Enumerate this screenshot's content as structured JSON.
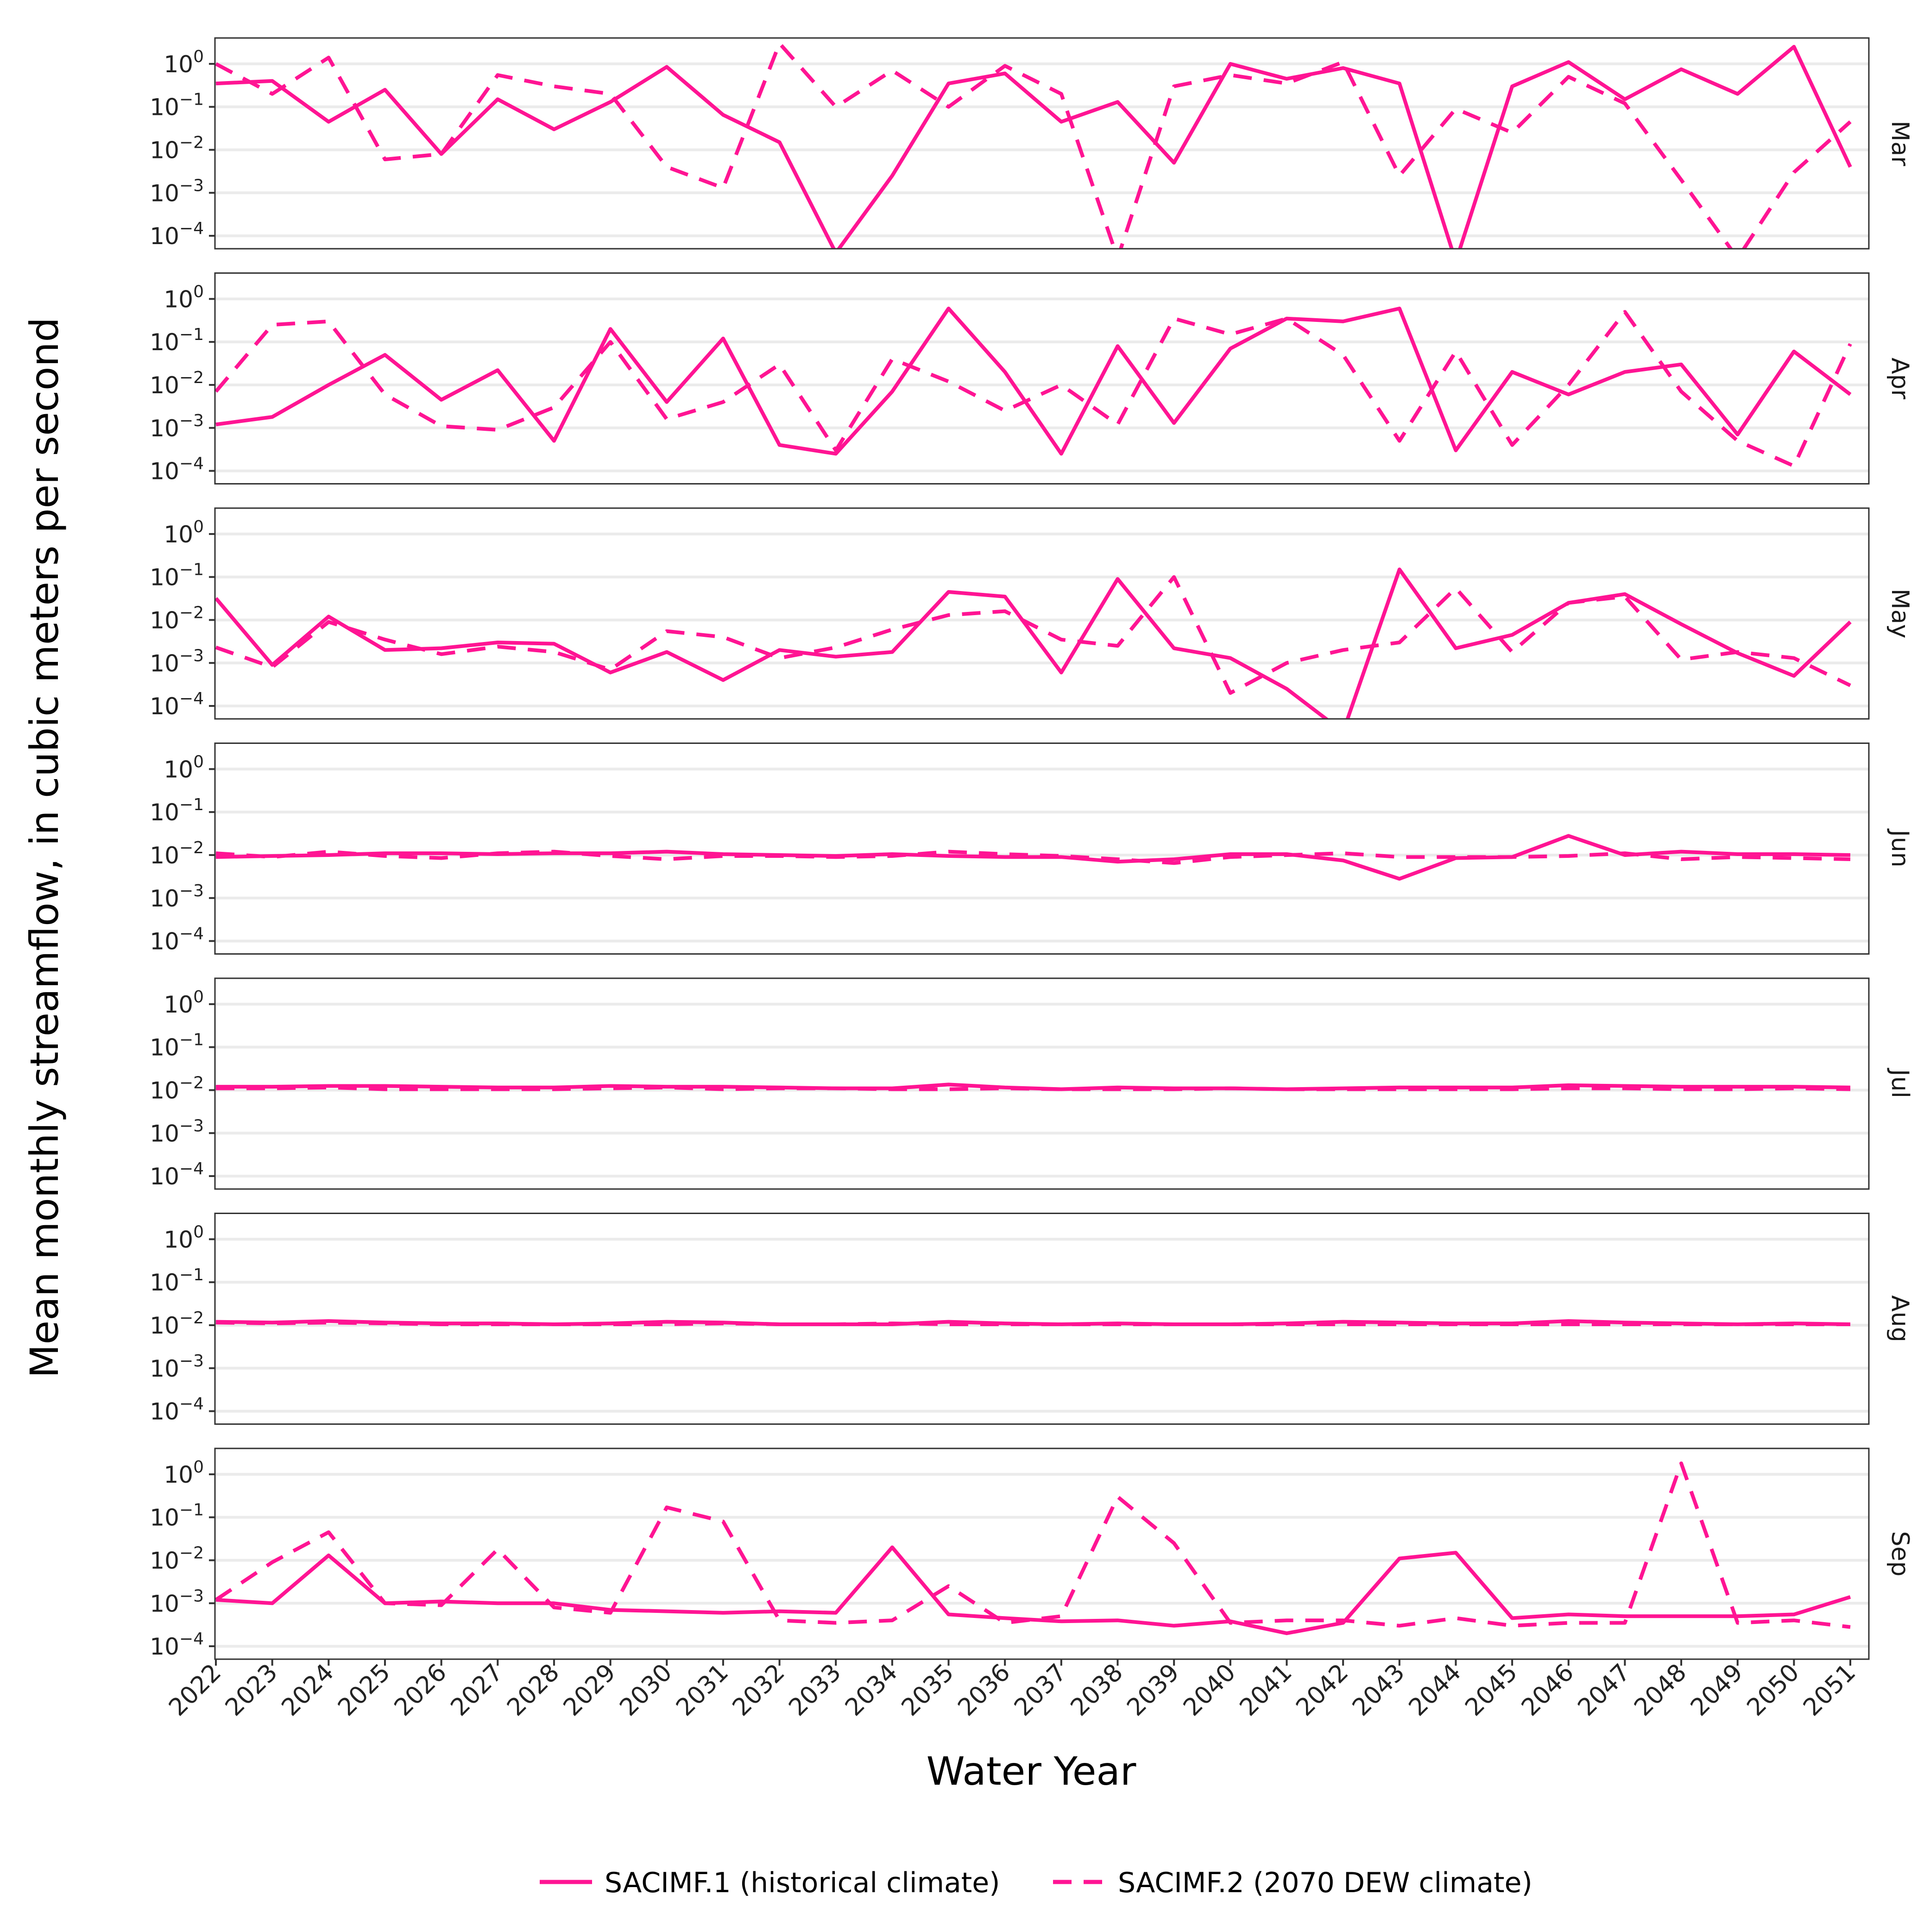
{
  "chart_data": {
    "type": "line",
    "xlabel": "Water Year",
    "ylabel": "Mean monthly streamflow, in cubic meters per second",
    "y_scale": "log10",
    "ylim": [
      5e-05,
      4
    ],
    "y_ticks": [
      1,
      0.1,
      0.01,
      0.001,
      0.0001
    ],
    "y_tick_labels": [
      {
        "base": "10",
        "exp": "0"
      },
      {
        "base": "10",
        "exp": "−1"
      },
      {
        "base": "10",
        "exp": "−2"
      },
      {
        "base": "10",
        "exp": "−3"
      },
      {
        "base": "10",
        "exp": "−4"
      }
    ],
    "grid": "horizontal major",
    "legend_position": "bottom",
    "color": "#FF1493",
    "x": [
      "2022",
      "2023",
      "2024",
      "2025",
      "2026",
      "2027",
      "2028",
      "2029",
      "2030",
      "2031",
      "2032",
      "2033",
      "2034",
      "2035",
      "2036",
      "2037",
      "2038",
      "2039",
      "2040",
      "2041",
      "2042",
      "2043",
      "2044",
      "2045",
      "2046",
      "2047",
      "2048",
      "2049",
      "2050",
      "2051"
    ],
    "series_styles": [
      {
        "name": "SACIMF.1 (historical climate)",
        "line": "solid"
      },
      {
        "name": "SACIMF.2 (2070 DEW climate)",
        "line": "dashed"
      }
    ],
    "panels": [
      {
        "label": "Mar",
        "series": [
          {
            "name": "SACIMF.1 (historical climate)",
            "values": [
              0.35,
              0.4,
              0.045,
              0.25,
              0.008,
              0.15,
              0.03,
              0.13,
              0.85,
              0.065,
              0.015,
              4e-05,
              0.0025,
              0.35,
              0.6,
              0.045,
              0.13,
              0.005,
              1.0,
              0.45,
              0.8,
              0.35,
              2.5e-05,
              0.3,
              1.1,
              0.15,
              0.75,
              0.2,
              2.5,
              0.004
            ]
          },
          {
            "name": "SACIMF.2 (2070 DEW climate)",
            "values": [
              1.0,
              0.2,
              1.4,
              0.006,
              0.008,
              0.55,
              0.3,
              0.2,
              0.004,
              0.0013,
              3.0,
              0.1,
              0.7,
              0.1,
              0.9,
              0.2,
              3e-05,
              0.3,
              0.55,
              0.35,
              1.1,
              0.0025,
              0.09,
              0.025,
              0.5,
              0.12,
              0.002,
              3e-05,
              0.003,
              0.045
            ]
          }
        ]
      },
      {
        "label": "Apr",
        "series": [
          {
            "name": "SACIMF.1 (historical climate)",
            "values": [
              0.0012,
              0.0018,
              0.01,
              0.05,
              0.0045,
              0.022,
              0.0005,
              0.2,
              0.004,
              0.12,
              0.0004,
              0.00025,
              0.007,
              0.6,
              0.02,
              0.00025,
              0.08,
              0.0013,
              0.07,
              0.35,
              0.3,
              0.6,
              0.0003,
              0.02,
              0.006,
              0.02,
              0.03,
              0.0007,
              0.06,
              0.006
            ]
          },
          {
            "name": "SACIMF.2 (2070 DEW climate)",
            "values": [
              0.007,
              0.25,
              0.3,
              0.006,
              0.0011,
              0.0009,
              0.003,
              0.1,
              0.0016,
              0.004,
              0.03,
              0.0003,
              0.04,
              0.012,
              0.0025,
              0.01,
              0.0012,
              0.35,
              0.15,
              0.35,
              0.05,
              0.0005,
              0.06,
              0.0004,
              0.01,
              0.5,
              0.007,
              0.0005,
              0.00013,
              0.09
            ]
          }
        ]
      },
      {
        "label": "May",
        "series": [
          {
            "name": "SACIMF.1 (historical climate)",
            "values": [
              0.032,
              0.0009,
              0.012,
              0.002,
              0.0022,
              0.003,
              0.0028,
              0.0006,
              0.0018,
              0.0004,
              0.002,
              0.0014,
              0.0018,
              0.045,
              0.035,
              0.0006,
              0.09,
              0.0022,
              0.0013,
              0.00025,
              2.5e-05,
              0.15,
              0.0022,
              0.0045,
              0.025,
              0.04,
              0.008,
              0.0017,
              0.0005,
              0.009
            ]
          },
          {
            "name": "SACIMF.2 (2070 DEW climate)",
            "values": [
              0.0023,
              0.0008,
              0.009,
              0.0035,
              0.0016,
              0.0024,
              0.0018,
              0.0007,
              0.0055,
              0.004,
              0.0013,
              0.0023,
              0.006,
              0.013,
              0.016,
              0.0035,
              0.0025,
              0.1,
              0.0002,
              0.001,
              0.002,
              0.003,
              0.055,
              0.0018,
              0.025,
              0.035,
              0.0012,
              0.0018,
              0.0013,
              0.0003
            ]
          }
        ]
      },
      {
        "label": "Jun",
        "series": [
          {
            "name": "SACIMF.1 (historical climate)",
            "values": [
              0.009,
              0.0095,
              0.01,
              0.011,
              0.011,
              0.0105,
              0.011,
              0.011,
              0.012,
              0.0105,
              0.01,
              0.0095,
              0.0105,
              0.0095,
              0.009,
              0.009,
              0.007,
              0.008,
              0.0105,
              0.0105,
              0.0075,
              0.0028,
              0.0085,
              0.009,
              0.028,
              0.01,
              0.012,
              0.0105,
              0.0105,
              0.01
            ]
          },
          {
            "name": "SACIMF.2 (2070 DEW climate)",
            "values": [
              0.011,
              0.009,
              0.012,
              0.0095,
              0.0085,
              0.011,
              0.012,
              0.0095,
              0.008,
              0.0095,
              0.0095,
              0.009,
              0.0095,
              0.012,
              0.0105,
              0.0095,
              0.008,
              0.0065,
              0.009,
              0.01,
              0.011,
              0.009,
              0.009,
              0.009,
              0.0095,
              0.011,
              0.008,
              0.009,
              0.0085,
              0.008
            ]
          }
        ]
      },
      {
        "label": "Jul",
        "series": [
          {
            "name": "SACIMF.1 (historical climate)",
            "values": [
              0.012,
              0.012,
              0.0125,
              0.0125,
              0.012,
              0.0115,
              0.0115,
              0.0125,
              0.012,
              0.012,
              0.0115,
              0.011,
              0.011,
              0.0135,
              0.0115,
              0.0105,
              0.0115,
              0.011,
              0.011,
              0.0105,
              0.011,
              0.0115,
              0.0115,
              0.0115,
              0.013,
              0.0125,
              0.012,
              0.012,
              0.012,
              0.0115
            ]
          },
          {
            "name": "SACIMF.2 (2070 DEW climate)",
            "values": [
              0.011,
              0.011,
              0.0115,
              0.0105,
              0.0105,
              0.0105,
              0.0105,
              0.011,
              0.0115,
              0.0105,
              0.011,
              0.011,
              0.0105,
              0.0105,
              0.011,
              0.0105,
              0.0105,
              0.0105,
              0.011,
              0.0105,
              0.0105,
              0.0105,
              0.0105,
              0.0105,
              0.011,
              0.011,
              0.0105,
              0.0105,
              0.011,
              0.0105
            ]
          }
        ]
      },
      {
        "label": "Aug",
        "series": [
          {
            "name": "SACIMF.1 (historical climate)",
            "values": [
              0.012,
              0.0115,
              0.0125,
              0.0115,
              0.011,
              0.011,
              0.0105,
              0.011,
              0.012,
              0.0115,
              0.0105,
              0.0105,
              0.0105,
              0.012,
              0.011,
              0.0105,
              0.011,
              0.0105,
              0.0105,
              0.011,
              0.012,
              0.0115,
              0.011,
              0.011,
              0.0125,
              0.0115,
              0.011,
              0.0105,
              0.011,
              0.0105
            ]
          },
          {
            "name": "SACIMF.2 (2070 DEW climate)",
            "values": [
              0.0115,
              0.011,
              0.0115,
              0.011,
              0.0105,
              0.0105,
              0.0105,
              0.0105,
              0.0105,
              0.011,
              0.0105,
              0.0105,
              0.011,
              0.0105,
              0.0105,
              0.0105,
              0.0105,
              0.0105,
              0.0105,
              0.0105,
              0.0105,
              0.0105,
              0.0105,
              0.0105,
              0.0105,
              0.0105,
              0.0105,
              0.0105,
              0.0105,
              0.0105
            ]
          }
        ]
      },
      {
        "label": "Sep",
        "series": [
          {
            "name": "SACIMF.1 (historical climate)",
            "values": [
              0.0012,
              0.001,
              0.013,
              0.001,
              0.0011,
              0.001,
              0.001,
              0.0007,
              0.00065,
              0.0006,
              0.00065,
              0.0006,
              0.02,
              0.00055,
              0.00045,
              0.00038,
              0.0004,
              0.0003,
              0.00038,
              0.0002,
              0.00035,
              0.011,
              0.015,
              0.00045,
              0.00055,
              0.0005,
              0.0005,
              0.0005,
              0.00055,
              0.0014
            ]
          },
          {
            "name": "SACIMF.2 (2070 DEW climate)",
            "values": [
              0.0012,
              0.009,
              0.045,
              0.001,
              0.0009,
              0.018,
              0.0008,
              0.0006,
              0.17,
              0.08,
              0.0004,
              0.00035,
              0.0004,
              0.0025,
              0.00035,
              0.0005,
              0.3,
              0.025,
              0.00035,
              0.0004,
              0.0004,
              0.0003,
              0.00045,
              0.0003,
              0.00035,
              0.00035,
              1.8,
              0.00035,
              0.0004,
              0.00028
            ]
          }
        ]
      }
    ]
  }
}
